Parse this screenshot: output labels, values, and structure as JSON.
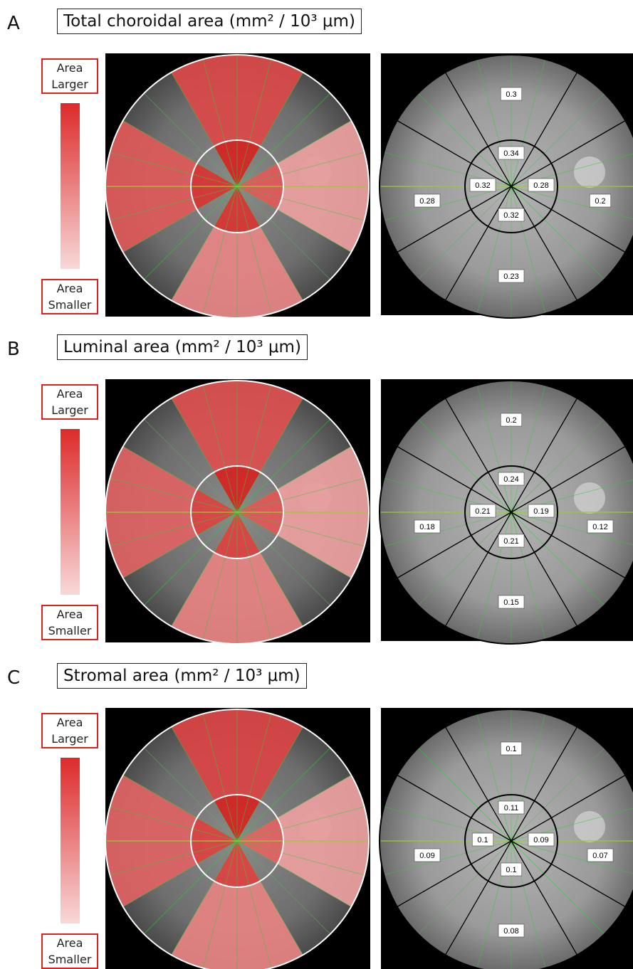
{
  "panels": [
    {
      "letter": "A",
      "title": "Total choroidal area (mm² / 10³ μm)",
      "legend_top": "Area Larger",
      "legend_bottom": "Area Smaller",
      "values": {
        "outer_top": 0.3,
        "inner_top": 0.34,
        "inner_left": 0.32,
        "inner_right": 0.28,
        "inner_bottom": 0.32,
        "outer_left": 0.28,
        "outer_right": 0.2,
        "outer_bottom": 0.23
      }
    },
    {
      "letter": "B",
      "title": "Luminal area (mm² / 10³ μm)",
      "legend_top": "Area Larger",
      "legend_bottom": "Area Smaller",
      "values": {
        "outer_top": 0.2,
        "inner_top": 0.24,
        "inner_left": 0.21,
        "inner_right": 0.19,
        "inner_bottom": 0.21,
        "outer_left": 0.18,
        "outer_right": 0.12,
        "outer_bottom": 0.15
      }
    },
    {
      "letter": "C",
      "title": "Stromal area (mm² / 10³ μm)",
      "legend_top": "Area Larger",
      "legend_bottom": "Area Smaller",
      "values": {
        "outer_top": 0.1,
        "inner_top": 0.11,
        "inner_left": 0.1,
        "inner_right": 0.09,
        "inner_bottom": 0.1,
        "outer_left": 0.09,
        "outer_right": 0.07,
        "outer_bottom": 0.08
      }
    }
  ]
}
